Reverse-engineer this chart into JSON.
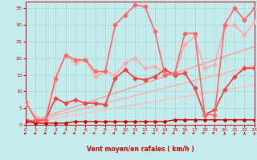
{
  "xlabel": "Vent moyen/en rafales ( km/h )",
  "xlim": [
    0,
    23
  ],
  "ylim": [
    0,
    37
  ],
  "xticks": [
    0,
    1,
    2,
    3,
    4,
    5,
    6,
    7,
    8,
    9,
    10,
    11,
    12,
    13,
    14,
    15,
    16,
    17,
    18,
    19,
    20,
    21,
    22,
    23
  ],
  "yticks": [
    0,
    5,
    10,
    15,
    20,
    25,
    30,
    35
  ],
  "bg_color": "#c5eced",
  "grid_color": "#add8da",
  "series": [
    {
      "x": [
        0,
        1,
        2,
        3,
        4,
        5,
        6,
        7,
        8,
        9,
        10,
        11,
        12,
        13,
        14,
        15,
        16,
        17,
        18,
        19,
        20,
        21,
        22,
        23
      ],
      "y": [
        0.5,
        1.0,
        1.5,
        2.0,
        2.5,
        3.0,
        3.5,
        4.0,
        4.5,
        5.0,
        5.5,
        6.0,
        6.5,
        7.0,
        7.5,
        8.0,
        8.5,
        9.0,
        9.5,
        10.0,
        10.5,
        11.0,
        11.5,
        12.0
      ],
      "color": "#ffbbbb",
      "lw": 1.0,
      "marker": null
    },
    {
      "x": [
        0,
        1,
        2,
        3,
        4,
        5,
        6,
        7,
        8,
        9,
        10,
        11,
        12,
        13,
        14,
        15,
        16,
        17,
        18,
        19,
        20,
        21,
        22,
        23
      ],
      "y": [
        0.5,
        1.2,
        2.0,
        2.8,
        3.5,
        4.3,
        5.0,
        5.8,
        6.5,
        7.3,
        8.0,
        8.8,
        9.5,
        10.3,
        11.0,
        11.8,
        12.5,
        13.3,
        14.0,
        14.8,
        15.5,
        16.3,
        17.0,
        17.8
      ],
      "color": "#ffaaaa",
      "lw": 1.0,
      "marker": null
    },
    {
      "x": [
        0,
        1,
        2,
        3,
        4,
        5,
        6,
        7,
        8,
        9,
        10,
        11,
        12,
        13,
        14,
        15,
        16,
        17,
        18,
        19,
        20,
        21,
        22,
        23
      ],
      "y": [
        0.5,
        1.5,
        2.5,
        3.5,
        4.5,
        5.5,
        6.5,
        7.5,
        8.5,
        9.5,
        10.5,
        11.5,
        12.5,
        13.5,
        14.5,
        15.5,
        16.5,
        17.5,
        18.5,
        19.5,
        20.5,
        21.5,
        22.5,
        23.5
      ],
      "color": "#ff9999",
      "lw": 1.0,
      "marker": null
    },
    {
      "x": [
        0,
        1,
        2,
        3,
        4,
        5,
        6,
        7,
        8,
        9,
        10,
        11,
        12,
        13,
        14,
        15,
        16,
        17,
        18,
        19,
        20,
        21,
        22,
        23
      ],
      "y": [
        6.5,
        2.5,
        1.5,
        13.5,
        21.0,
        18.5,
        19.5,
        14.5,
        16.0,
        15.0,
        18.5,
        20.0,
        17.0,
        17.5,
        15.5,
        15.5,
        24.0,
        26.5,
        17.0,
        18.0,
        29.5,
        30.0,
        27.0,
        31.0
      ],
      "color": "#ffaaaa",
      "lw": 1.2,
      "marker": "D",
      "ms": 2.5
    },
    {
      "x": [
        0,
        1,
        2,
        3,
        4,
        5,
        6,
        7,
        8,
        9,
        10,
        11,
        12,
        13,
        14,
        15,
        16,
        17,
        18,
        19,
        20,
        21,
        22,
        23
      ],
      "y": [
        1.5,
        1.0,
        1.5,
        8.0,
        6.5,
        7.5,
        6.5,
        6.5,
        6.0,
        14.0,
        16.5,
        14.0,
        13.5,
        14.5,
        16.5,
        15.0,
        15.5,
        11.0,
        3.0,
        4.5,
        10.5,
        14.5,
        17.0,
        17.0
      ],
      "color": "#ee4444",
      "lw": 1.3,
      "marker": "D",
      "ms": 2.5
    },
    {
      "x": [
        0,
        1,
        2,
        3,
        4,
        5,
        6,
        7,
        8,
        9,
        10,
        11,
        12,
        13,
        14,
        15,
        16,
        17,
        18,
        19,
        20,
        21,
        22,
        23
      ],
      "y": [
        1.0,
        0.5,
        0.5,
        0.5,
        0.5,
        1.0,
        1.0,
        1.0,
        1.0,
        1.0,
        1.0,
        1.0,
        1.0,
        1.0,
        1.0,
        1.5,
        1.5,
        1.5,
        1.5,
        1.5,
        1.5,
        1.5,
        1.5,
        1.5
      ],
      "color": "#cc0000",
      "lw": 1.0,
      "marker": "D",
      "ms": 2.0
    },
    {
      "x": [
        0,
        1,
        2,
        3,
        4,
        5,
        6,
        7,
        8,
        9,
        10,
        11,
        12,
        13,
        14,
        15,
        16,
        17,
        18,
        19,
        20,
        21,
        22,
        23
      ],
      "y": [
        7.0,
        1.5,
        1.5,
        14.0,
        21.0,
        19.5,
        19.5,
        16.0,
        16.0,
        30.0,
        33.0,
        36.0,
        35.5,
        28.0,
        15.0,
        15.5,
        27.5,
        27.5,
        3.0,
        3.0,
        30.0,
        35.0,
        31.5,
        35.0
      ],
      "color": "#ff6666",
      "lw": 1.2,
      "marker": "D",
      "ms": 2.5
    }
  ]
}
